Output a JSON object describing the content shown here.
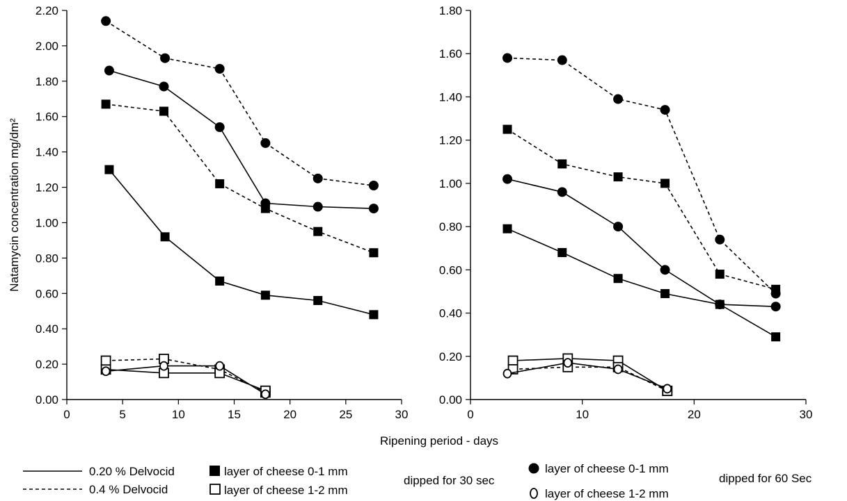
{
  "chart_data": [
    {
      "type": "line",
      "panel": "left",
      "ylabel": "Natamycin concentration mg/dm²",
      "xlim": [
        0,
        30
      ],
      "ylim": [
        0,
        2.2
      ],
      "x_ticks": [
        "0",
        "5",
        "10",
        "15",
        "20",
        "25",
        "30"
      ],
      "x_tick_values": [
        0,
        5,
        10,
        15,
        20,
        25,
        30
      ],
      "y_ticks": [
        "0.00",
        "0.20",
        "0.40",
        "0.60",
        "0.80",
        "1.00",
        "1.20",
        "1.40",
        "1.60",
        "1.80",
        "2.00",
        "2.20"
      ],
      "y_tick_values": [
        0,
        0.2,
        0.4,
        0.6,
        0.8,
        1.0,
        1.2,
        1.4,
        1.6,
        1.8,
        2.0,
        2.2
      ],
      "grid": false,
      "series": [
        {
          "line": "dashed",
          "marker": "filled-circle",
          "x": [
            3.5,
            8.8,
            13.7,
            17.8,
            22.5,
            27.5
          ],
          "y": [
            2.14,
            1.93,
            1.87,
            1.45,
            1.25,
            1.21
          ]
        },
        {
          "line": "solid",
          "marker": "filled-circle",
          "x": [
            3.8,
            8.7,
            13.7,
            17.8,
            22.5,
            27.5
          ],
          "y": [
            1.86,
            1.77,
            1.54,
            1.11,
            1.09,
            1.08
          ]
        },
        {
          "line": "dashed",
          "marker": "filled-square",
          "x": [
            3.5,
            8.7,
            13.7,
            17.8,
            22.5,
            27.5
          ],
          "y": [
            1.67,
            1.63,
            1.22,
            1.08,
            0.95,
            0.83
          ]
        },
        {
          "line": "solid",
          "marker": "filled-square",
          "x": [
            3.8,
            8.8,
            13.7,
            17.8,
            22.5,
            27.5
          ],
          "y": [
            1.3,
            0.92,
            0.67,
            0.59,
            0.56,
            0.48
          ]
        },
        {
          "line": "dashed",
          "marker": "open-square",
          "x": [
            3.5,
            8.7,
            13.7,
            17.8
          ],
          "y": [
            0.22,
            0.23,
            0.17,
            0.04
          ]
        },
        {
          "line": "solid",
          "marker": "open-square",
          "x": [
            3.5,
            8.7,
            13.7,
            17.8
          ],
          "y": [
            0.17,
            0.15,
            0.15,
            0.05
          ]
        },
        {
          "line": "solid",
          "marker": "open-circle",
          "x": [
            3.5,
            8.7,
            13.7,
            17.8
          ],
          "y": [
            0.16,
            0.19,
            0.19,
            0.03
          ]
        }
      ]
    },
    {
      "type": "line",
      "panel": "right",
      "xlim": [
        0,
        30
      ],
      "ylim": [
        0,
        1.8
      ],
      "x_ticks": [
        "0",
        "10",
        "20",
        "30"
      ],
      "x_tick_values": [
        0,
        10,
        20,
        30
      ],
      "y_ticks": [
        "0.00",
        "0.20",
        "0.40",
        "0.60",
        "0.80",
        "1.00",
        "1.20",
        "1.40",
        "1.60",
        "1.80"
      ],
      "y_tick_values": [
        0,
        0.2,
        0.4,
        0.6,
        0.8,
        1.0,
        1.2,
        1.4,
        1.6,
        1.8
      ],
      "grid": false,
      "series": [
        {
          "line": "dashed",
          "marker": "filled-circle",
          "x": [
            3.3,
            8.2,
            13.2,
            17.4,
            22.3,
            27.3
          ],
          "y": [
            1.58,
            1.57,
            1.39,
            1.34,
            0.74,
            0.49
          ]
        },
        {
          "line": "dashed",
          "marker": "filled-square",
          "x": [
            3.3,
            8.2,
            13.2,
            17.4,
            22.3,
            27.3
          ],
          "y": [
            1.25,
            1.09,
            1.03,
            1.0,
            0.58,
            0.51
          ]
        },
        {
          "line": "solid",
          "marker": "filled-circle",
          "x": [
            3.3,
            8.2,
            13.2,
            17.4,
            22.3,
            27.3
          ],
          "y": [
            1.02,
            0.96,
            0.8,
            0.6,
            0.44,
            0.43
          ]
        },
        {
          "line": "solid",
          "marker": "filled-square",
          "x": [
            3.3,
            8.2,
            13.2,
            17.4,
            22.3,
            27.3
          ],
          "y": [
            0.79,
            0.68,
            0.56,
            0.49,
            0.44,
            0.29
          ]
        },
        {
          "line": "solid",
          "marker": "open-square",
          "x": [
            3.8,
            8.7,
            13.2,
            17.6
          ],
          "y": [
            0.18,
            0.19,
            0.18,
            0.04
          ]
        },
        {
          "line": "dashed",
          "marker": "open-square",
          "x": [
            3.8,
            8.7,
            13.2,
            17.6
          ],
          "y": [
            0.14,
            0.15,
            0.15,
            0.04
          ]
        },
        {
          "line": "solid",
          "marker": "open-circle",
          "x": [
            3.3,
            8.7,
            13.2,
            17.6
          ],
          "y": [
            0.12,
            0.17,
            0.14,
            0.05
          ]
        }
      ]
    }
  ],
  "shared_xlabel": "Ripening period - days",
  "legend": {
    "solid_label": "0.20 % Delvocid",
    "dashed_label": "0.4 % Delvocid",
    "filled_square_label": "layer of cheese 0-1 mm",
    "open_square_label": "layer of cheese 1-2 mm",
    "group_30": "dipped for 30 sec",
    "filled_circle_label": "layer of cheese 0-1 mm",
    "open_circle_label": "layer of cheese 1-2 mm",
    "group_60": "dipped for 60 Sec"
  }
}
